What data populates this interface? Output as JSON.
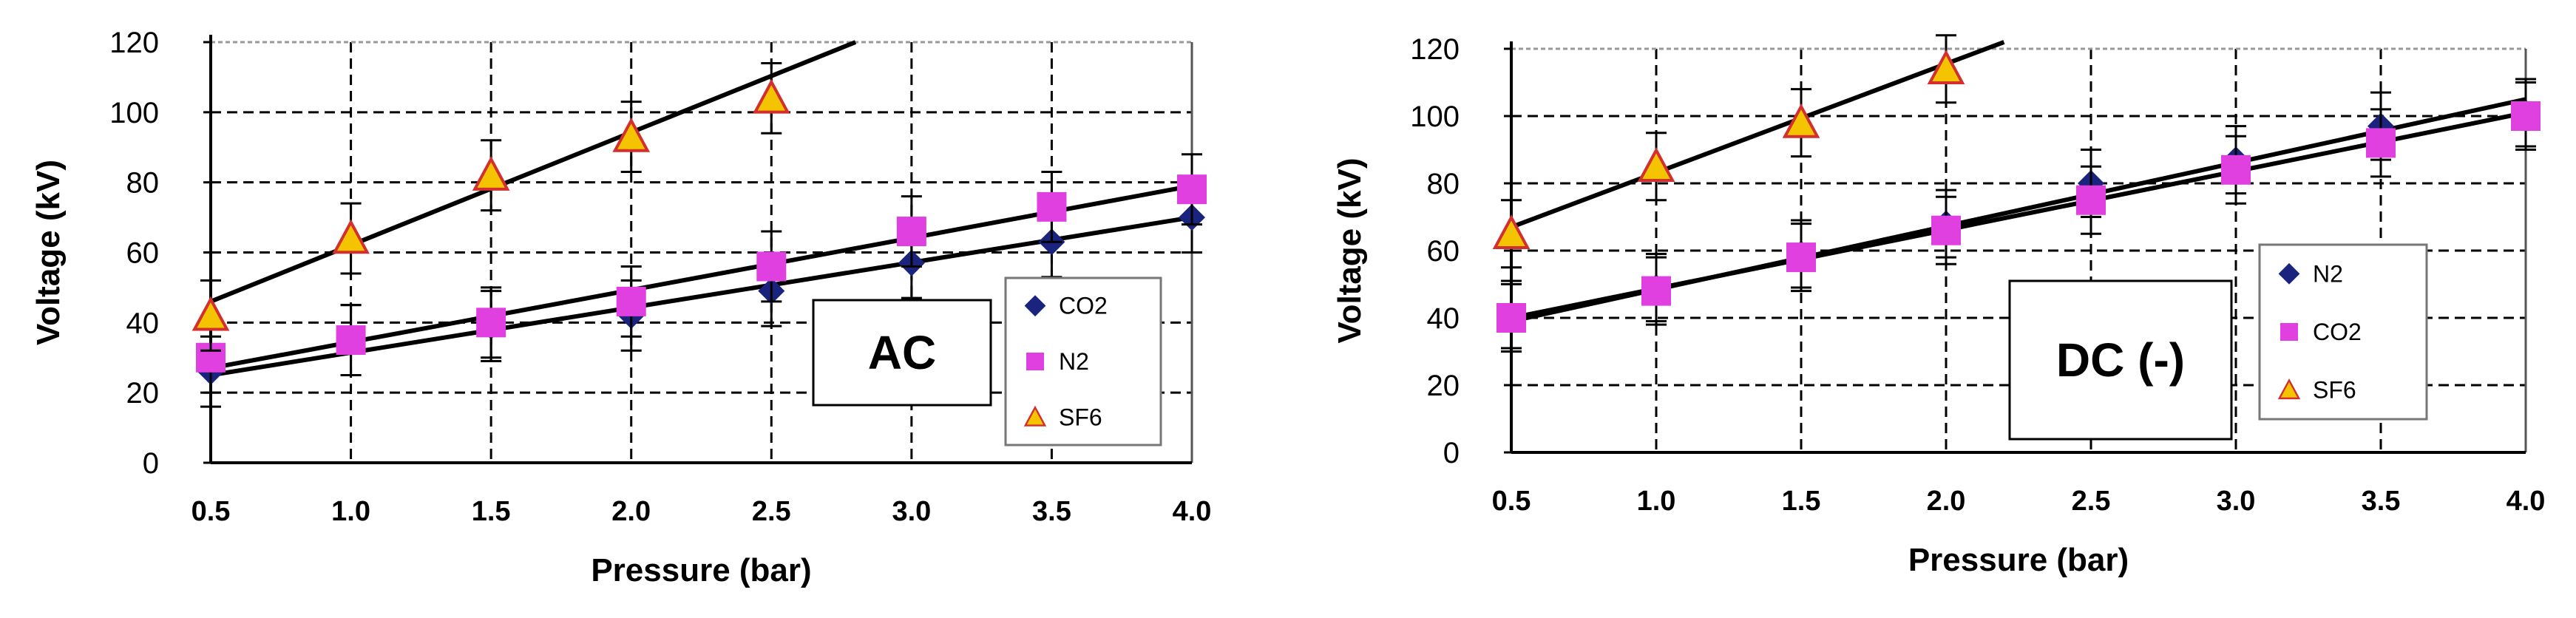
{
  "chart_data": [
    {
      "type": "scatter",
      "label": "AC",
      "xlabel": "Pressure (bar)",
      "ylabel": "Voltage (kV)",
      "xlim": [
        0.5,
        4.0
      ],
      "ylim": [
        0,
        120
      ],
      "xticks": [
        "0.5",
        "1.0",
        "1.5",
        "2.0",
        "2.5",
        "3.0",
        "3.5",
        "4.0"
      ],
      "yticks": [
        "0",
        "20",
        "40",
        "60",
        "80",
        "100",
        "120"
      ],
      "grid": true,
      "legend_position": "bottom-right",
      "series": [
        {
          "name": "CO2",
          "marker": "diamond",
          "color": "#1a237e",
          "x": [
            0.5,
            1.0,
            1.5,
            2.0,
            2.5,
            3.0,
            3.5,
            4.0
          ],
          "y": [
            26,
            35,
            39,
            42,
            49,
            57,
            63,
            70
          ],
          "fit": [
            [
              0.5,
              25
            ],
            [
              4.0,
              70
            ]
          ]
        },
        {
          "name": "N2",
          "marker": "square",
          "color": "#e040e0",
          "x": [
            0.5,
            1.0,
            1.5,
            2.0,
            2.5,
            3.0,
            3.5,
            4.0
          ],
          "y": [
            30,
            35,
            40,
            46,
            56,
            66,
            73,
            78
          ],
          "fit": [
            [
              0.5,
              27
            ],
            [
              4.0,
              79
            ]
          ]
        },
        {
          "name": "SF6",
          "marker": "triangle",
          "color": "#f5c400",
          "edge": "#d32f2f",
          "x": [
            0.5,
            1.0,
            1.5,
            2.0,
            2.5
          ],
          "y": [
            42,
            64,
            82,
            93,
            104
          ],
          "fit": [
            [
              0.5,
              46
            ],
            [
              2.8,
              120
            ]
          ]
        }
      ]
    },
    {
      "type": "scatter",
      "label": "DC (-)",
      "xlabel": "Pressure (bar)",
      "ylabel": "Voltage (kV)",
      "xlim": [
        0.5,
        4.0
      ],
      "ylim": [
        0,
        120
      ],
      "xticks": [
        "0.5",
        "1.0",
        "1.5",
        "2.0",
        "2.5",
        "3.0",
        "3.5",
        "4.0"
      ],
      "yticks": [
        "0",
        "20",
        "40",
        "60",
        "80",
        "100",
        "120"
      ],
      "grid": true,
      "legend_position": "bottom-right",
      "series": [
        {
          "name": "N2",
          "marker": "diamond",
          "color": "#1a237e",
          "x": [
            0.5,
            1.0,
            1.5,
            2.0,
            2.5,
            3.0,
            3.5,
            4.0
          ],
          "y": [
            41,
            49,
            59,
            68,
            80,
            87,
            97,
            101
          ],
          "fit": [
            [
              0.5,
              39
            ],
            [
              4.0,
              105
            ]
          ]
        },
        {
          "name": "CO2",
          "marker": "square",
          "color": "#e040e0",
          "x": [
            0.5,
            1.0,
            1.5,
            2.0,
            2.5,
            3.0,
            3.5,
            4.0
          ],
          "y": [
            40,
            48,
            58,
            66,
            75,
            84,
            92,
            100
          ],
          "fit": [
            [
              0.5,
              40
            ],
            [
              4.0,
              101
            ]
          ]
        },
        {
          "name": "SF6",
          "marker": "triangle",
          "color": "#f5c400",
          "edge": "#d32f2f",
          "x": [
            0.5,
            1.0,
            1.5,
            2.0
          ],
          "y": [
            65,
            85,
            98,
            114
          ],
          "fit": [
            [
              0.5,
              67
            ],
            [
              2.2,
              122
            ]
          ]
        }
      ]
    }
  ]
}
